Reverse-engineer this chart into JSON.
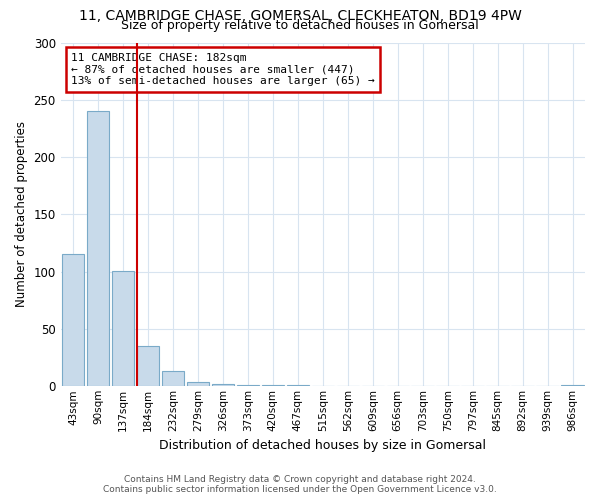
{
  "title": "11, CAMBRIDGE CHASE, GOMERSAL, CLECKHEATON, BD19 4PW",
  "subtitle": "Size of property relative to detached houses in Gomersal",
  "xlabel": "Distribution of detached houses by size in Gomersal",
  "ylabel": "Number of detached properties",
  "bin_labels": [
    "43sqm",
    "90sqm",
    "137sqm",
    "184sqm",
    "232sqm",
    "279sqm",
    "326sqm",
    "373sqm",
    "420sqm",
    "467sqm",
    "515sqm",
    "562sqm",
    "609sqm",
    "656sqm",
    "703sqm",
    "750sqm",
    "797sqm",
    "845sqm",
    "892sqm",
    "939sqm",
    "986sqm"
  ],
  "bar_values": [
    115,
    240,
    101,
    35,
    13,
    4,
    2,
    1,
    1,
    1,
    0,
    0,
    0,
    0,
    0,
    0,
    0,
    0,
    0,
    0,
    1
  ],
  "bar_color": "#c8daea",
  "bar_edge_color": "#7aaac8",
  "vline_x_idx": 3,
  "vline_color": "#cc0000",
  "annotation_line1": "11 CAMBRIDGE CHASE: 182sqm",
  "annotation_line2": "← 87% of detached houses are smaller (447)",
  "annotation_line3": "13% of semi-detached houses are larger (65) →",
  "annotation_box_color": "#cc0000",
  "annotation_bg": "#ffffff",
  "ylim": [
    0,
    300
  ],
  "yticks": [
    0,
    50,
    100,
    150,
    200,
    250,
    300
  ],
  "footer1": "Contains HM Land Registry data © Crown copyright and database right 2024.",
  "footer2": "Contains public sector information licensed under the Open Government Licence v3.0.",
  "bg_color": "#ffffff",
  "plot_bg": "#ffffff",
  "grid_color": "#d8e4f0",
  "title_fontsize": 10,
  "subtitle_fontsize": 9
}
